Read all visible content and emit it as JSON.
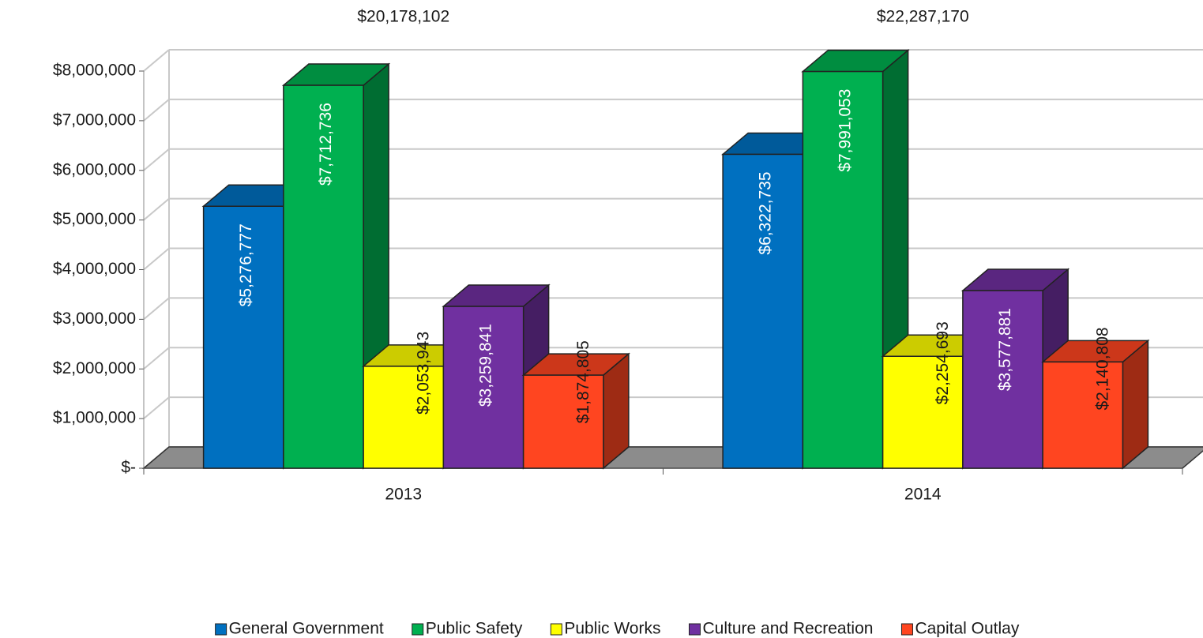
{
  "chart_data": {
    "type": "bar3d",
    "categories": [
      "2013",
      "2014"
    ],
    "annotations": [
      "$20,178,102",
      "$22,287,170"
    ],
    "series": [
      {
        "name": "General Government",
        "color": "#0070c0",
        "values": [
          5276777,
          6322735
        ],
        "value_labels": [
          "$5,276,777",
          "$6,322,735"
        ]
      },
      {
        "name": "Public Safety",
        "color": "#00b050",
        "values": [
          7712736,
          7991053
        ],
        "value_labels": [
          "$7,712,736",
          "$7,991,053"
        ]
      },
      {
        "name": "Public Works",
        "color": "#ffff00",
        "values": [
          2053943,
          2254693
        ],
        "value_labels": [
          "$2,053,943",
          "$2,254,693"
        ]
      },
      {
        "name": "Culture and Recreation",
        "color": "#7030a0",
        "values": [
          3259841,
          3577881
        ],
        "value_labels": [
          "$3,259,841",
          "$3,577,881"
        ]
      },
      {
        "name": "Capital Outlay",
        "color": "#ff4520",
        "values": [
          1874805,
          2140808
        ],
        "value_labels": [
          "$1,874,805",
          "$2,140,808"
        ]
      }
    ],
    "ylim": [
      0,
      8000000
    ],
    "yticks": [
      {
        "value": 0,
        "label": "$-"
      },
      {
        "value": 1000000,
        "label": "$1,000,000"
      },
      {
        "value": 2000000,
        "label": "$2,000,000"
      },
      {
        "value": 3000000,
        "label": "$3,000,000"
      },
      {
        "value": 4000000,
        "label": "$4,000,000"
      },
      {
        "value": 5000000,
        "label": "$5,000,000"
      },
      {
        "value": 6000000,
        "label": "$6,000,000"
      },
      {
        "value": 7000000,
        "label": "$7,000,000"
      },
      {
        "value": 8000000,
        "label": "$8,000,000"
      }
    ],
    "grid": true,
    "legend": "bottom"
  }
}
